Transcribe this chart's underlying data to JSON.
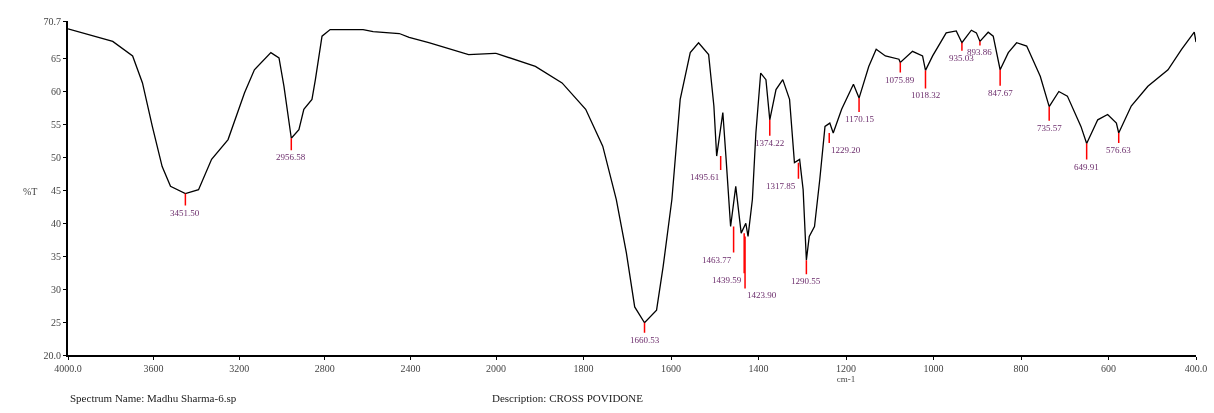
{
  "chart_data": [
    {
      "type": "line",
      "ylabel": "%T",
      "xlim": [
        4000,
        2000
      ],
      "xticks": [
        {
          "value": 4000,
          "label": "4000.0"
        },
        3600,
        3200,
        2800,
        2400
      ],
      "ylim": [
        20,
        70.7
      ],
      "yticks": [
        {
          "value": 20,
          "label": "20.0"
        },
        25,
        30,
        35,
        40,
        45,
        50,
        55,
        60,
        65,
        70.7
      ],
      "grid": false,
      "marker": "none",
      "line_style": "solid",
      "series": [
        {
          "color": "#000000",
          "x": [
            4000,
            3791,
            3698,
            3652,
            3606,
            3560,
            3521,
            3451.5,
            3390,
            3329,
            3252,
            3175,
            3129,
            3052,
            3014,
            2991,
            2956.58,
            2921,
            2898,
            2860,
            2844,
            2813,
            2775,
            2621,
            2574,
            2452,
            2406,
            2314,
            2128,
            2006,
            2000
          ],
          "values": [
            69.5,
            67.6,
            65.4,
            61.3,
            54.7,
            48.6,
            45.6,
            44.5,
            45.1,
            49.7,
            52.7,
            59.8,
            63.3,
            65.9,
            65.1,
            60.8,
            52.9,
            54.2,
            57.3,
            58.8,
            61.8,
            68.4,
            69.4,
            69.4,
            69.1,
            68.8,
            68.2,
            67.4,
            65.6,
            65.8,
            65.8
          ]
        }
      ],
      "annotations": [
        {
          "text": "3451.50",
          "x": 3451.5,
          "y": 44.5
        },
        {
          "text": "2956.58",
          "x": 2956.58,
          "y": 52.9
        },
        "Spectrum Name: Madhu Sharma-6.sp",
        "Description: CROSS POVIDONE"
      ]
    },
    {
      "type": "line",
      "xlabel": "cm-1",
      "xlim": [
        2000,
        400
      ],
      "xticks": [
        2000,
        1800,
        1600,
        1400,
        1200,
        1000,
        800,
        600,
        {
          "value": 400,
          "label": "400.0"
        }
      ],
      "ylim": [
        20,
        70.7
      ],
      "tick_labels": "x",
      "grid": false,
      "marker": "none",
      "line_style": "solid",
      "series": [
        {
          "color": "#000000",
          "x": [
            2000,
            1910,
            1849,
            1795,
            1756,
            1725,
            1702,
            1683,
            1660.53,
            1633,
            1618,
            1598,
            1579,
            1556,
            1537,
            1514,
            1502,
            1495.61,
            1481.5,
            1474,
            1463.77,
            1452,
            1439.59,
            1429,
            1423.9,
            1414,
            1406,
            1395,
            1383,
            1374.22,
            1360,
            1344.5,
            1329,
            1317.85,
            1306,
            1298,
            1290.55,
            1284,
            1272,
            1260,
            1248,
            1237,
            1229.2,
            1210,
            1183,
            1170.15,
            1148,
            1131,
            1110,
            1079,
            1075.89,
            1048,
            1025,
            1018.32,
            1002,
            971,
            948,
            935.03,
            913.5,
            902,
            893.86,
            875,
            863.5,
            847.67,
            829,
            810,
            787,
            756,
            735.57,
            713.5,
            694,
            663,
            649.91,
            624.6,
            602,
            582,
            576.63,
            548,
            510,
            464,
            433,
            404,
            400
          ],
          "values": [
            65.8,
            63.8,
            61.3,
            57.3,
            51.7,
            43.6,
            35.5,
            27.3,
            24.9,
            26.8,
            33.4,
            43.6,
            58.8,
            65.9,
            67.4,
            65.6,
            57.8,
            50.2,
            56.8,
            49.7,
            39.5,
            45.6,
            38.5,
            40.0,
            38.0,
            43.6,
            53.7,
            62.8,
            61.8,
            55.7,
            60.3,
            61.8,
            58.8,
            49.2,
            49.7,
            45.1,
            34.4,
            38.0,
            39.5,
            46.6,
            54.7,
            55.2,
            53.7,
            57.3,
            61.1,
            59.0,
            63.8,
            66.4,
            65.4,
            64.9,
            64.4,
            66.1,
            65.4,
            63.2,
            65.4,
            68.9,
            69.2,
            67.4,
            69.3,
            68.9,
            67.6,
            69.0,
            68.4,
            63.3,
            65.9,
            67.4,
            66.9,
            62.3,
            57.7,
            60.0,
            59.3,
            54.7,
            52.1,
            55.7,
            56.5,
            55.2,
            53.7,
            57.8,
            60.8,
            63.3,
            66.4,
            69.0,
            67.5
          ]
        }
      ],
      "annotations": [
        {
          "text": "1660.53",
          "x": 1660.53,
          "y": 24.9
        },
        {
          "text": "1495.61",
          "x": 1495.61,
          "y": 50.2
        },
        {
          "text": "1463.77",
          "x": 1463.77,
          "y": 39.5
        },
        {
          "text": "1439.59",
          "x": 1439.59,
          "y": 38.5
        },
        {
          "text": "1423.90",
          "x": 1423.9,
          "y": 38.0
        },
        {
          "text": "1374.22",
          "x": 1374.22,
          "y": 55.7
        },
        {
          "text": "1317.85",
          "x": 1317.85,
          "y": 49.2
        },
        {
          "text": "1290.55",
          "x": 1290.55,
          "y": 34.4
        },
        {
          "text": "1229.20",
          "x": 1229.2,
          "y": 53.7
        },
        {
          "text": "1170.15",
          "x": 1170.15,
          "y": 59.0
        },
        {
          "text": "1075.89",
          "x": 1075.89,
          "y": 64.4
        },
        {
          "text": "1018.32",
          "x": 1018.32,
          "y": 63.2
        },
        {
          "text": "935.03",
          "x": 935.03,
          "y": 67.4
        },
        {
          "text": "893.86",
          "x": 893.86,
          "y": 67.6
        },
        {
          "text": "847.67",
          "x": 847.67,
          "y": 63.3
        },
        {
          "text": "735.57",
          "x": 735.57,
          "y": 57.7
        },
        {
          "text": "649.91",
          "x": 649.91,
          "y": 52.1
        },
        {
          "text": "576.63",
          "x": 576.63,
          "y": 53.7
        }
      ]
    }
  ]
}
